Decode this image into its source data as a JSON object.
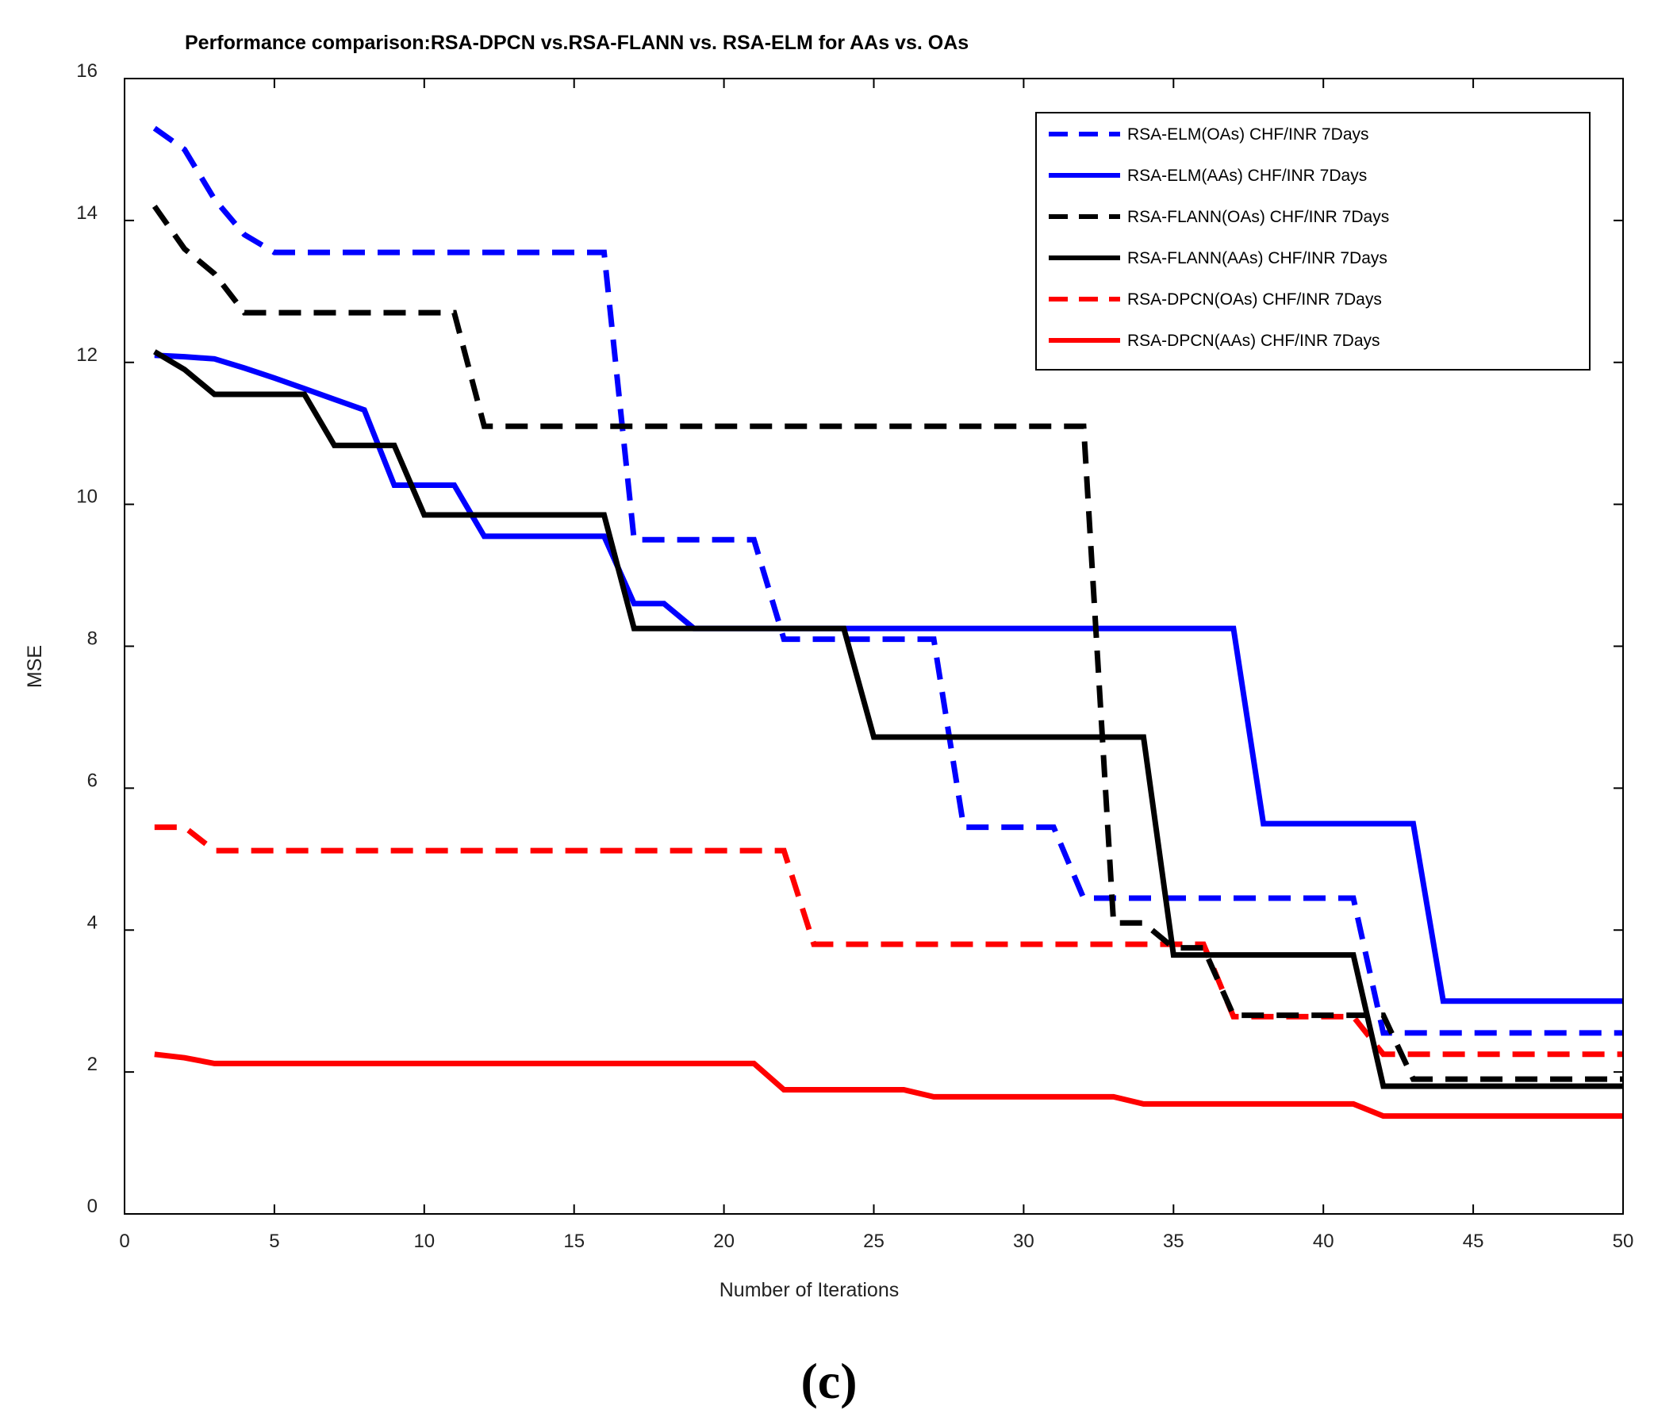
{
  "chart_data": {
    "type": "line",
    "title": "Performance comparison:RSA-DPCN vs.RSA-FLANN vs. RSA-ELM for AAs vs. OAs",
    "xlabel": "Number of Iterations",
    "ylabel": "MSE",
    "xlim": [
      0,
      50
    ],
    "ylim": [
      0,
      16
    ],
    "xticks": [
      0,
      5,
      10,
      15,
      20,
      25,
      30,
      35,
      40,
      45,
      50
    ],
    "yticks": [
      0,
      2,
      4,
      6,
      8,
      10,
      12,
      14,
      16
    ],
    "legend_position": "top-right",
    "caption": "(c)",
    "series": [
      {
        "name": "RSA-ELM(OAs) CHF/INR 7Days",
        "color": "#0000ff",
        "style": "dashed",
        "x": [
          1,
          2,
          3,
          4,
          5,
          16,
          17,
          18,
          21,
          22,
          24,
          25,
          26,
          27,
          28,
          30,
          31,
          32,
          33,
          34,
          41,
          42,
          50
        ],
        "y": [
          15.3,
          15.0,
          14.3,
          13.8,
          13.55,
          13.55,
          9.5,
          9.5,
          9.5,
          8.1,
          8.1,
          8.1,
          8.1,
          8.1,
          5.45,
          5.45,
          5.45,
          4.45,
          4.45,
          4.45,
          4.45,
          2.55,
          2.55
        ]
      },
      {
        "name": "RSA-ELM(AAs) CHF/INR 7Days",
        "color": "#0000ff",
        "style": "solid",
        "x": [
          1,
          2,
          3,
          4,
          5,
          6,
          7,
          8,
          9,
          10,
          11,
          12,
          16,
          17,
          18,
          19,
          20,
          37,
          38,
          43,
          44,
          50
        ],
        "y": [
          12.1,
          12.08,
          12.05,
          11.92,
          11.78,
          11.63,
          11.48,
          11.33,
          10.27,
          10.27,
          10.27,
          9.55,
          9.55,
          8.6,
          8.6,
          8.25,
          8.25,
          8.25,
          5.5,
          5.5,
          3.0,
          3.0
        ]
      },
      {
        "name": "RSA-FLANN(OAs) CHF/INR 7Days",
        "color": "#000000",
        "style": "dashed",
        "x": [
          1,
          2,
          3,
          4,
          11,
          12,
          32,
          33,
          34,
          35,
          36,
          37,
          42,
          43,
          50
        ],
        "y": [
          14.2,
          13.6,
          13.25,
          12.7,
          12.7,
          11.1,
          11.1,
          4.1,
          4.1,
          3.75,
          3.75,
          2.8,
          2.8,
          1.9,
          1.9
        ]
      },
      {
        "name": "RSA-FLANN(AAs) CHF/INR 7Days",
        "color": "#000000",
        "style": "solid",
        "x": [
          1,
          2,
          3,
          6,
          7,
          9,
          10,
          16,
          17,
          24,
          25,
          34,
          35,
          41,
          42,
          50
        ],
        "y": [
          12.15,
          11.9,
          11.55,
          11.55,
          10.83,
          10.83,
          9.85,
          9.85,
          8.25,
          8.25,
          6.72,
          6.72,
          3.65,
          3.65,
          1.8,
          1.8
        ]
      },
      {
        "name": "RSA-DPCN(OAs) CHF/INR 7Days",
        "color": "#ff0000",
        "style": "dashed",
        "x": [
          1,
          2,
          3,
          22,
          23,
          36,
          37,
          38,
          39,
          40,
          41,
          42,
          50
        ],
        "y": [
          5.45,
          5.45,
          5.12,
          5.12,
          3.8,
          3.8,
          2.78,
          2.78,
          2.78,
          2.78,
          2.78,
          2.25,
          2.25
        ]
      },
      {
        "name": "RSA-DPCN(AAs) CHF/INR 7Days",
        "color": "#ff0000",
        "style": "solid",
        "x": [
          1,
          2,
          3,
          21,
          22,
          26,
          27,
          33,
          34,
          41,
          42,
          50
        ],
        "y": [
          2.25,
          2.2,
          2.12,
          2.12,
          1.75,
          1.75,
          1.65,
          1.65,
          1.55,
          1.55,
          1.38,
          1.38
        ]
      }
    ]
  }
}
